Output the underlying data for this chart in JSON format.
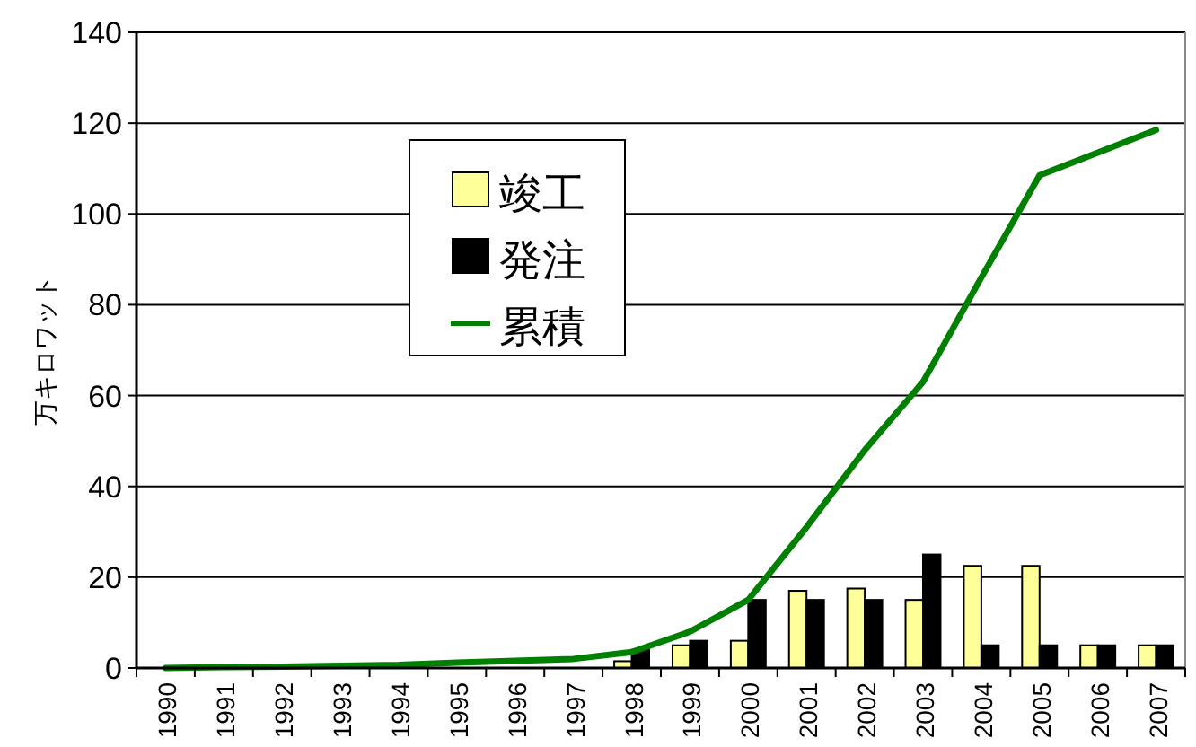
{
  "chart_data": {
    "type": "bar",
    "ylabel": "万キロワット",
    "categories": [
      "1990",
      "1991",
      "1992",
      "1993",
      "1994",
      "1995",
      "1996",
      "1997",
      "1998",
      "1999",
      "2000",
      "2001",
      "2002",
      "2003",
      "2004",
      "2005",
      "2006",
      "2007"
    ],
    "series": [
      {
        "name": "竣工",
        "color": "#ffff99",
        "values": [
          0,
          0,
          0,
          0,
          0,
          0,
          0,
          0,
          1.5,
          5,
          6,
          17,
          17.5,
          15,
          22.5,
          22.5,
          5,
          5
        ]
      },
      {
        "name": "発注",
        "color": "#000000",
        "values": [
          0,
          0,
          0,
          0,
          0,
          0,
          null,
          null,
          4,
          6,
          15,
          15,
          15,
          25,
          5,
          5,
          5,
          5
        ]
      },
      {
        "name": "累積",
        "type": "line",
        "color": "#008000",
        "values": [
          0,
          0.2,
          0.3,
          0.5,
          0.7,
          1.2,
          1.6,
          2,
          3.5,
          8,
          15,
          31,
          48,
          63,
          86,
          108.5,
          113.5,
          118.5
        ]
      }
    ],
    "ylim": [
      0,
      140
    ],
    "yticks": [
      0,
      20,
      40,
      60,
      80,
      100,
      120,
      140
    ],
    "grid": "y",
    "legend": "top"
  }
}
